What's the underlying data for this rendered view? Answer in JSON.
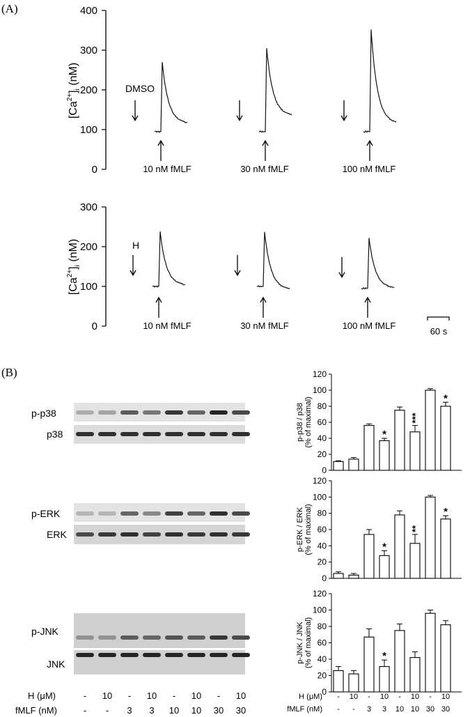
{
  "panels": {
    "a": "(A)",
    "b": "(B)"
  },
  "traces": {
    "top": {
      "ylabel_main": "[Ca",
      "ylabel_sup": "2+",
      "ylabel_tail": "]",
      "ylabel_sub": "i",
      "ylabel_unit": " (nM)",
      "yticks": [
        "0",
        "100",
        "200",
        "300",
        "400"
      ],
      "label": "DMSO",
      "stimuli": [
        "10 nM fMLF",
        "30 nM fMLF",
        "100 nM fMLF"
      ]
    },
    "bottom": {
      "ylabel_main": "[Ca",
      "ylabel_sup": "2+",
      "ylabel_tail": "]",
      "ylabel_sub": "i",
      "ylabel_unit": " (nM)",
      "yticks": [
        "0",
        "100",
        "200",
        "300"
      ],
      "label": "H",
      "stimuli": [
        "10 nM fMLF",
        "30 nM fMLF",
        "100 nM fMLF"
      ]
    },
    "scale_bar": "60 s"
  },
  "blots": {
    "labels": [
      "p-p38",
      "p38",
      "p-ERK",
      "ERK",
      "p-JNK",
      "JNK"
    ],
    "h_label": "H (μM)",
    "fmlf_label": "fMLF (nM)",
    "h_values": [
      "-",
      "10",
      "-",
      "10",
      "-",
      "10",
      "-",
      "10"
    ],
    "fmlf_values": [
      "-",
      "-",
      "3",
      "3",
      "10",
      "10",
      "30",
      "30"
    ]
  },
  "chart_data": [
    {
      "type": "line",
      "title": "",
      "ylabel": "[Ca2+]i (nM)",
      "ylim": [
        0,
        400
      ],
      "series": [
        {
          "name": "10 nM fMLF",
          "baseline": 95,
          "peak": 270,
          "end": 115
        },
        {
          "name": "30 nM fMLF",
          "baseline": 95,
          "peak": 305,
          "end": 135
        },
        {
          "name": "100 nM fMLF",
          "baseline": 95,
          "peak": 352,
          "end": 115
        }
      ]
    },
    {
      "type": "line",
      "title": "",
      "ylabel": "[Ca2+]i (nM)",
      "ylim": [
        0,
        300
      ],
      "series": [
        {
          "name": "10 nM fMLF",
          "baseline": 100,
          "peak": 238,
          "end": 102
        },
        {
          "name": "30 nM fMLF",
          "baseline": 100,
          "peak": 237,
          "end": 92
        },
        {
          "name": "100 nM fMLF",
          "baseline": 95,
          "peak": 222,
          "end": 95
        }
      ]
    },
    {
      "type": "bar",
      "ylabel": "p-p38 / p38\n(% of maximal)",
      "ylim": [
        0,
        120
      ],
      "yticks": [
        "0",
        "20",
        "40",
        "60",
        "80",
        "100",
        "120"
      ],
      "values": [
        11,
        14,
        56,
        37,
        75,
        48,
        100,
        80
      ],
      "errors": [
        1,
        2,
        2,
        3,
        4,
        8,
        2,
        5
      ],
      "stars": [
        "",
        "",
        "",
        "*",
        "",
        "***",
        "",
        "*"
      ]
    },
    {
      "type": "bar",
      "ylabel": "p-ERK / ERK\n(% of maximal)",
      "ylim": [
        0,
        120
      ],
      "yticks": [
        "0",
        "20",
        "40",
        "60",
        "80",
        "100",
        "120"
      ],
      "values": [
        6,
        4,
        54,
        28,
        78,
        43,
        100,
        73
      ],
      "errors": [
        2,
        2,
        6,
        6,
        5,
        11,
        2,
        4
      ],
      "stars": [
        "",
        "",
        "",
        "*",
        "",
        "**",
        "",
        "*"
      ]
    },
    {
      "type": "bar",
      "ylabel": "p-JNK / JNK\n(% of maximal)",
      "ylim": [
        0,
        120
      ],
      "yticks": [
        "0",
        "20",
        "40",
        "60",
        "80",
        "100",
        "120"
      ],
      "values": [
        26,
        22,
        67,
        31,
        75,
        42,
        96,
        82
      ],
      "errors": [
        5,
        4,
        10,
        8,
        8,
        7,
        4,
        5
      ],
      "stars": [
        "",
        "",
        "",
        "*",
        "",
        "",
        "",
        ""
      ]
    }
  ],
  "bar_axis": {
    "h_label": "H (μM)",
    "fmlf_label": "fMLF (nM)",
    "h_values": [
      "-",
      "10",
      "-",
      "10",
      "-",
      "10",
      "-",
      "10"
    ],
    "fmlf_values": [
      "-",
      "-",
      "3",
      "3",
      "10",
      "10",
      "30",
      "30"
    ]
  }
}
